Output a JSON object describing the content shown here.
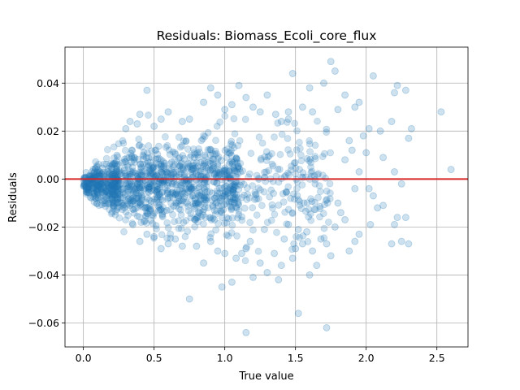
{
  "chart_data": {
    "type": "scatter",
    "title": "Residuals: Biomass_Ecoli_core_flux",
    "xlabel": "True value",
    "ylabel": "Residuals",
    "xlim": [
      -0.13,
      2.72
    ],
    "ylim": [
      -0.07,
      0.055
    ],
    "x_ticks": [
      0.0,
      0.5,
      1.0,
      1.5,
      2.0,
      2.5
    ],
    "x_tick_labels": [
      "0.0",
      "0.5",
      "1.0",
      "1.5",
      "2.0",
      "2.5"
    ],
    "y_ticks": [
      -0.06,
      -0.04,
      -0.02,
      0.0,
      0.02,
      0.04
    ],
    "y_tick_labels": [
      "−0.06",
      "−0.04",
      "−0.02",
      "0.00",
      "0.02",
      "0.04"
    ],
    "grid": true,
    "reference_line": {
      "y": 0.0,
      "color": "#d62728"
    },
    "series": [
      {
        "name": "residuals",
        "color": "#1f77b4",
        "alpha": 0.22,
        "points": [
          [
            0.45,
            0.037
          ],
          [
            0.4,
            0.027
          ],
          [
            0.55,
            0.025
          ],
          [
            0.6,
            0.028
          ],
          [
            0.75,
            0.025
          ],
          [
            0.85,
            0.032
          ],
          [
            0.9,
            0.038
          ],
          [
            0.95,
            0.035
          ],
          [
            1.0,
            0.029
          ],
          [
            1.05,
            0.031
          ],
          [
            1.1,
            0.039
          ],
          [
            1.15,
            0.034
          ],
          [
            1.2,
            0.03
          ],
          [
            1.25,
            0.028
          ],
          [
            1.3,
            0.035
          ],
          [
            1.36,
            0.027
          ],
          [
            1.45,
            0.028
          ],
          [
            1.48,
            0.044
          ],
          [
            1.55,
            0.03
          ],
          [
            1.6,
            0.038
          ],
          [
            1.62,
            0.028
          ],
          [
            1.7,
            0.04
          ],
          [
            1.75,
            0.049
          ],
          [
            1.78,
            0.045
          ],
          [
            1.8,
            0.029
          ],
          [
            1.85,
            0.035
          ],
          [
            1.92,
            0.03
          ],
          [
            1.95,
            0.032
          ],
          [
            2.02,
            0.021
          ],
          [
            2.05,
            0.043
          ],
          [
            2.1,
            0.02
          ],
          [
            2.18,
            0.024
          ],
          [
            2.2,
            0.036
          ],
          [
            2.22,
            0.039
          ],
          [
            2.28,
            0.037
          ],
          [
            2.3,
            0.017
          ],
          [
            2.32,
            0.021
          ],
          [
            2.53,
            0.028
          ],
          [
            2.6,
            0.004
          ],
          [
            2.12,
            0.009
          ],
          [
            2.0,
            0.011
          ],
          [
            1.98,
            0.018
          ],
          [
            2.02,
            -0.004
          ],
          [
            2.05,
            -0.007
          ],
          [
            2.08,
            -0.012
          ],
          [
            2.12,
            -0.011
          ],
          [
            2.2,
            -0.019
          ],
          [
            2.22,
            -0.016
          ],
          [
            2.25,
            -0.002
          ],
          [
            2.2,
            0.003
          ],
          [
            2.25,
            -0.026
          ],
          [
            2.28,
            -0.016
          ],
          [
            2.18,
            -0.027
          ],
          [
            2.3,
            -0.027
          ],
          [
            2.03,
            -0.019
          ],
          [
            1.95,
            -0.023
          ],
          [
            1.92,
            -0.026
          ],
          [
            1.88,
            -0.03
          ],
          [
            1.85,
            -0.017
          ],
          [
            1.82,
            -0.014
          ],
          [
            1.78,
            -0.02
          ],
          [
            1.75,
            -0.032
          ],
          [
            1.72,
            -0.027
          ],
          [
            1.68,
            -0.025
          ],
          [
            1.65,
            -0.036
          ],
          [
            1.62,
            -0.03
          ],
          [
            1.58,
            -0.022
          ],
          [
            1.55,
            -0.027
          ],
          [
            1.52,
            -0.021
          ],
          [
            1.5,
            -0.029
          ],
          [
            1.48,
            -0.033
          ],
          [
            1.45,
            -0.019
          ],
          [
            1.42,
            -0.025
          ],
          [
            1.4,
            -0.036
          ],
          [
            1.35,
            -0.031
          ],
          [
            1.3,
            -0.039
          ],
          [
            1.28,
            -0.021
          ],
          [
            1.25,
            -0.035
          ],
          [
            1.2,
            -0.041
          ],
          [
            1.18,
            -0.026
          ],
          [
            1.15,
            -0.029
          ],
          [
            1.12,
            -0.031
          ],
          [
            1.08,
            -0.033
          ],
          [
            1.05,
            -0.043
          ],
          [
            1.0,
            -0.031
          ],
          [
            0.98,
            -0.045
          ],
          [
            0.95,
            -0.03
          ],
          [
            0.9,
            -0.026
          ],
          [
            0.85,
            -0.035
          ],
          [
            0.8,
            -0.028
          ],
          [
            0.75,
            -0.05
          ],
          [
            0.7,
            -0.028
          ],
          [
            0.65,
            -0.025
          ],
          [
            0.6,
            -0.027
          ],
          [
            0.55,
            -0.029
          ],
          [
            0.5,
            -0.024
          ],
          [
            0.45,
            -0.023
          ],
          [
            0.4,
            -0.026
          ],
          [
            0.35,
            -0.019
          ],
          [
            1.15,
            -0.064
          ],
          [
            1.52,
            -0.056
          ],
          [
            1.72,
            -0.062
          ],
          [
            1.6,
            -0.04
          ],
          [
            1.38,
            -0.042
          ],
          [
            1.45,
            0.025
          ],
          [
            0.33,
            0.024
          ],
          [
            0.3,
            0.021
          ],
          [
            0.38,
            0.023
          ],
          [
            0.5,
            0.022
          ],
          [
            0.7,
            0.024
          ],
          [
            1.4,
            0.024
          ],
          [
            1.88,
            0.016
          ],
          [
            1.9,
            0.012
          ],
          [
            1.85,
            0.008
          ],
          [
            1.8,
            -0.01
          ],
          [
            1.92,
            -0.004
          ],
          [
            1.95,
            0.003
          ]
        ]
      }
    ]
  }
}
